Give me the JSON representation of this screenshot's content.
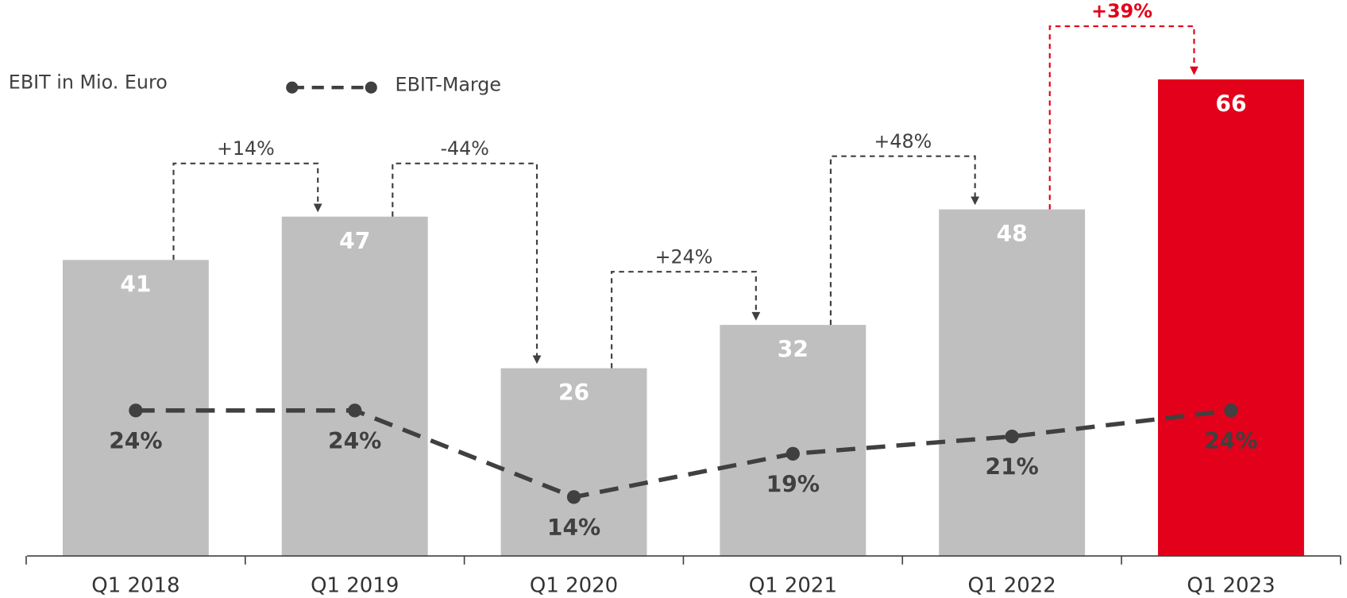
{
  "chart_data": {
    "type": "bar",
    "y_label": "EBIT in Mio. Euro",
    "categories": [
      "Q1 2018",
      "Q1 2019",
      "Q1 2020",
      "Q1 2021",
      "Q1 2022",
      "Q1 2023"
    ],
    "values": [
      41,
      47,
      26,
      32,
      48,
      66
    ],
    "colors": [
      "#bfbfbf",
      "#bfbfbf",
      "#bfbfbf",
      "#bfbfbf",
      "#bfbfbf",
      "#e2001a"
    ],
    "ylim": [
      0,
      77
    ],
    "y2lim": [
      7.2,
      71.4
    ],
    "series": [
      {
        "name": "EBIT-Marge",
        "type": "line",
        "axis": "y2",
        "color": "#404040",
        "values": [
          24,
          24,
          14,
          19,
          21,
          24
        ],
        "value_labels": [
          "24%",
          "24%",
          "14%",
          "19%",
          "21%",
          "24%"
        ]
      }
    ],
    "changes": [
      {
        "label": "+14%",
        "color": "#404040"
      },
      {
        "label": "-44%",
        "color": "#404040"
      },
      {
        "label": "+24%",
        "color": "#404040"
      },
      {
        "label": "+48%",
        "color": "#404040"
      },
      {
        "label": "+39%",
        "color": "#e2001a"
      }
    ]
  }
}
